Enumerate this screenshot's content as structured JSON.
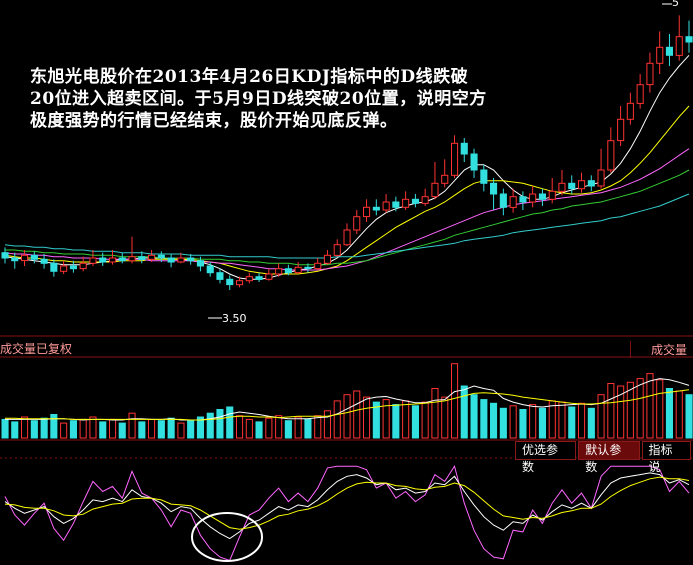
{
  "annotation": "东旭光电股价在2013年4月26日KDJ指标中的D线跌破20位进入超卖区间。于5月9日D线突破20位置，说明空方极度强势的行情已经结束，股价开始见底反弹。",
  "volume_panel": {
    "left_label": "成交量已复权",
    "right_label": "成交量"
  },
  "indicator_buttons": [
    "优选参数",
    "默认参数",
    "指标说"
  ],
  "price_labels": {
    "low": "3.50",
    "high": "5"
  },
  "colors": {
    "up": "#ff3333",
    "down": "#33e0e0",
    "ma5": "#ffffff",
    "ma10": "#ffff00",
    "ma20": "#ff66ff",
    "ma30": "#33cc33",
    "ma60": "#33cccc",
    "kdj_k": "#ffffff",
    "kdj_d": "#ffff00",
    "kdj_j": "#ff66ff",
    "separator": "#8a1010",
    "circle": "#ffffff"
  },
  "chart_data": {
    "type": "candlestick",
    "price_axis": [
      3.2,
      5.6
    ],
    "candles": [
      [
        3.78,
        3.74,
        3.82,
        3.7
      ],
      [
        3.74,
        3.72,
        3.78,
        3.66
      ],
      [
        3.72,
        3.76,
        3.8,
        3.68
      ],
      [
        3.76,
        3.73,
        3.79,
        3.7
      ],
      [
        3.73,
        3.7,
        3.77,
        3.66
      ],
      [
        3.7,
        3.64,
        3.73,
        3.6
      ],
      [
        3.64,
        3.68,
        3.72,
        3.62
      ],
      [
        3.68,
        3.66,
        3.72,
        3.63
      ],
      [
        3.66,
        3.7,
        3.75,
        3.64
      ],
      [
        3.7,
        3.74,
        3.8,
        3.68
      ],
      [
        3.74,
        3.71,
        3.78,
        3.68
      ],
      [
        3.71,
        3.74,
        3.8,
        3.69
      ],
      [
        3.74,
        3.72,
        3.78,
        3.7
      ],
      [
        3.72,
        3.75,
        3.9,
        3.7
      ],
      [
        3.75,
        3.73,
        3.79,
        3.7
      ],
      [
        3.73,
        3.76,
        3.8,
        3.71
      ],
      [
        3.76,
        3.74,
        3.79,
        3.71
      ],
      [
        3.74,
        3.71,
        3.77,
        3.67
      ],
      [
        3.71,
        3.74,
        3.78,
        3.7
      ],
      [
        3.74,
        3.72,
        3.77,
        3.69
      ],
      [
        3.72,
        3.68,
        3.75,
        3.64
      ],
      [
        3.68,
        3.63,
        3.71,
        3.6
      ],
      [
        3.63,
        3.58,
        3.66,
        3.55
      ],
      [
        3.58,
        3.54,
        3.61,
        3.5
      ],
      [
        3.54,
        3.57,
        3.6,
        3.52
      ],
      [
        3.57,
        3.6,
        3.63,
        3.55
      ],
      [
        3.6,
        3.58,
        3.63,
        3.56
      ],
      [
        3.58,
        3.62,
        3.66,
        3.57
      ],
      [
        3.62,
        3.66,
        3.7,
        3.6
      ],
      [
        3.66,
        3.63,
        3.69,
        3.61
      ],
      [
        3.63,
        3.67,
        3.71,
        3.62
      ],
      [
        3.67,
        3.66,
        3.7,
        3.63
      ],
      [
        3.66,
        3.7,
        3.74,
        3.65
      ],
      [
        3.7,
        3.76,
        3.8,
        3.69
      ],
      [
        3.76,
        3.84,
        3.88,
        3.75
      ],
      [
        3.84,
        3.95,
        4.0,
        3.83
      ],
      [
        3.95,
        4.05,
        4.1,
        3.92
      ],
      [
        4.05,
        4.12,
        4.18,
        4.01
      ],
      [
        4.12,
        4.1,
        4.18,
        4.06
      ],
      [
        4.1,
        4.16,
        4.22,
        4.08
      ],
      [
        4.16,
        4.12,
        4.2,
        4.09
      ],
      [
        4.12,
        4.18,
        4.24,
        4.1
      ],
      [
        4.18,
        4.15,
        4.22,
        4.12
      ],
      [
        4.15,
        4.2,
        4.26,
        4.13
      ],
      [
        4.2,
        4.3,
        4.46,
        4.18
      ],
      [
        4.3,
        4.36,
        4.48,
        4.27
      ],
      [
        4.36,
        4.6,
        4.66,
        4.34
      ],
      [
        4.6,
        4.52,
        4.64,
        4.46
      ],
      [
        4.52,
        4.4,
        4.56,
        4.34
      ],
      [
        4.4,
        4.3,
        4.44,
        4.24
      ],
      [
        4.3,
        4.22,
        4.34,
        4.1
      ],
      [
        4.22,
        4.12,
        4.26,
        4.06
      ],
      [
        4.12,
        4.2,
        4.26,
        4.08
      ],
      [
        4.2,
        4.16,
        4.24,
        4.1
      ],
      [
        4.16,
        4.22,
        4.28,
        4.12
      ],
      [
        4.22,
        4.18,
        4.26,
        4.13
      ],
      [
        4.18,
        4.24,
        4.34,
        4.15
      ],
      [
        4.24,
        4.3,
        4.4,
        4.21
      ],
      [
        4.3,
        4.26,
        4.36,
        4.22
      ],
      [
        4.26,
        4.32,
        4.38,
        4.23
      ],
      [
        4.32,
        4.28,
        4.36,
        4.24
      ],
      [
        4.28,
        4.4,
        4.56,
        4.26
      ],
      [
        4.4,
        4.62,
        4.72,
        4.38
      ],
      [
        4.62,
        4.78,
        4.88,
        4.58
      ],
      [
        4.78,
        4.9,
        4.98,
        4.74
      ],
      [
        4.9,
        5.04,
        5.12,
        4.86
      ],
      [
        5.04,
        5.2,
        5.28,
        4.98
      ],
      [
        5.2,
        5.32,
        5.44,
        5.12
      ],
      [
        5.32,
        5.26,
        5.42,
        5.18
      ],
      [
        5.26,
        5.4,
        5.56,
        5.22
      ],
      [
        5.4,
        5.36,
        5.52,
        5.28
      ]
    ],
    "ma_lines": {
      "MA5": [
        3.75,
        3.74,
        3.73,
        3.72,
        3.71,
        3.7,
        3.69,
        3.69,
        3.69,
        3.7,
        3.71,
        3.72,
        3.73,
        3.73,
        3.74,
        3.74,
        3.74,
        3.73,
        3.73,
        3.72,
        3.71,
        3.69,
        3.66,
        3.62,
        3.59,
        3.58,
        3.58,
        3.59,
        3.61,
        3.63,
        3.65,
        3.66,
        3.68,
        3.7,
        3.74,
        3.8,
        3.88,
        3.96,
        4.03,
        4.08,
        4.11,
        4.13,
        4.15,
        4.16,
        4.19,
        4.24,
        4.32,
        4.4,
        4.44,
        4.44,
        4.4,
        4.32,
        4.25,
        4.2,
        4.18,
        4.18,
        4.2,
        4.23,
        4.25,
        4.27,
        4.29,
        4.31,
        4.37,
        4.45,
        4.56,
        4.69,
        4.84,
        4.98,
        5.09,
        5.18,
        5.26
      ],
      "MA10": [
        3.76,
        3.75,
        3.74,
        3.74,
        3.73,
        3.72,
        3.72,
        3.71,
        3.71,
        3.71,
        3.71,
        3.71,
        3.72,
        3.72,
        3.72,
        3.73,
        3.73,
        3.73,
        3.73,
        3.73,
        3.72,
        3.71,
        3.7,
        3.68,
        3.66,
        3.64,
        3.63,
        3.62,
        3.62,
        3.62,
        3.62,
        3.63,
        3.64,
        3.66,
        3.68,
        3.72,
        3.77,
        3.82,
        3.87,
        3.92,
        3.97,
        4.01,
        4.05,
        4.09,
        4.12,
        4.16,
        4.21,
        4.26,
        4.3,
        4.32,
        4.32,
        4.32,
        4.31,
        4.3,
        4.28,
        4.26,
        4.24,
        4.23,
        4.22,
        4.22,
        4.23,
        4.25,
        4.28,
        4.32,
        4.38,
        4.45,
        4.53,
        4.62,
        4.71,
        4.8,
        4.88
      ],
      "MA20": [
        3.78,
        3.77,
        3.77,
        3.76,
        3.76,
        3.75,
        3.75,
        3.74,
        3.74,
        3.74,
        3.73,
        3.73,
        3.73,
        3.73,
        3.73,
        3.72,
        3.72,
        3.72,
        3.72,
        3.72,
        3.71,
        3.71,
        3.7,
        3.7,
        3.69,
        3.68,
        3.67,
        3.66,
        3.66,
        3.65,
        3.65,
        3.65,
        3.65,
        3.66,
        3.67,
        3.68,
        3.7,
        3.72,
        3.75,
        3.78,
        3.81,
        3.84,
        3.87,
        3.9,
        3.93,
        3.96,
        3.99,
        4.02,
        4.05,
        4.08,
        4.1,
        4.12,
        4.14,
        4.15,
        4.16,
        4.17,
        4.18,
        4.19,
        4.2,
        4.21,
        4.22,
        4.23,
        4.25,
        4.27,
        4.3,
        4.33,
        4.37,
        4.41,
        4.46,
        4.51,
        4.56
      ],
      "MA30": [
        3.8,
        3.8,
        3.79,
        3.79,
        3.78,
        3.78,
        3.77,
        3.77,
        3.77,
        3.76,
        3.76,
        3.76,
        3.75,
        3.75,
        3.75,
        3.75,
        3.74,
        3.74,
        3.74,
        3.74,
        3.73,
        3.73,
        3.73,
        3.72,
        3.72,
        3.71,
        3.71,
        3.7,
        3.7,
        3.7,
        3.69,
        3.69,
        3.69,
        3.69,
        3.7,
        3.7,
        3.71,
        3.72,
        3.74,
        3.76,
        3.78,
        3.8,
        3.82,
        3.84,
        3.86,
        3.88,
        3.91,
        3.93,
        3.95,
        3.97,
        3.99,
        4.01,
        4.03,
        4.05,
        4.07,
        4.08,
        4.1,
        4.11,
        4.13,
        4.14,
        4.15,
        4.16,
        4.18,
        4.2,
        4.22,
        4.24,
        4.27,
        4.3,
        4.33,
        4.36,
        4.4
      ],
      "MA60": [
        3.84,
        3.83,
        3.83,
        3.82,
        3.82,
        3.81,
        3.81,
        3.8,
        3.8,
        3.79,
        3.79,
        3.79,
        3.78,
        3.78,
        3.78,
        3.77,
        3.77,
        3.77,
        3.77,
        3.76,
        3.76,
        3.76,
        3.76,
        3.75,
        3.75,
        3.75,
        3.75,
        3.75,
        3.74,
        3.74,
        3.74,
        3.74,
        3.74,
        3.74,
        3.75,
        3.75,
        3.75,
        3.76,
        3.77,
        3.78,
        3.79,
        3.8,
        3.81,
        3.82,
        3.83,
        3.84,
        3.85,
        3.87,
        3.88,
        3.89,
        3.9,
        3.91,
        3.93,
        3.94,
        3.95,
        3.96,
        3.97,
        3.98,
        3.99,
        4.0,
        4.01,
        4.02,
        4.04,
        4.05,
        4.07,
        4.09,
        4.11,
        4.13,
        4.16,
        4.19,
        4.22
      ]
    },
    "volume": [
      30,
      26,
      34,
      28,
      32,
      38,
      24,
      28,
      30,
      34,
      26,
      30,
      24,
      40,
      26,
      30,
      28,
      32,
      24,
      28,
      34,
      40,
      46,
      50,
      36,
      30,
      26,
      32,
      36,
      28,
      34,
      30,
      36,
      44,
      60,
      70,
      76,
      66,
      58,
      62,
      54,
      60,
      52,
      58,
      80,
      66,
      120,
      84,
      70,
      62,
      56,
      48,
      52,
      46,
      54,
      48,
      60,
      58,
      50,
      56,
      48,
      70,
      88,
      84,
      90,
      96,
      104,
      94,
      80,
      76,
      70
    ],
    "volume_ma": {
      "MA5": [
        30,
        30,
        30,
        30,
        30,
        31,
        31,
        30,
        29,
        30,
        30,
        29,
        29,
        31,
        31,
        30,
        30,
        31,
        29,
        29,
        29,
        31,
        34,
        39,
        42,
        40,
        38,
        35,
        33,
        31,
        31,
        31,
        33,
        34,
        39,
        47,
        55,
        63,
        66,
        67,
        63,
        60,
        57,
        57,
        61,
        62,
        75,
        78,
        84,
        80,
        77,
        64,
        58,
        54,
        51,
        50,
        52,
        53,
        54,
        55,
        54,
        56,
        63,
        70,
        78,
        86,
        92,
        96,
        94,
        90,
        85
      ],
      "MA10": [
        32,
        32,
        31,
        31,
        31,
        31,
        31,
        30,
        30,
        30,
        30,
        30,
        30,
        30,
        30,
        30,
        30,
        30,
        30,
        29,
        29,
        30,
        31,
        34,
        35,
        35,
        34,
        34,
        33,
        34,
        35,
        35,
        35,
        35,
        38,
        41,
        45,
        48,
        50,
        52,
        53,
        54,
        55,
        56,
        58,
        60,
        64,
        68,
        72,
        73,
        72,
        71,
        69,
        66,
        64,
        62,
        60,
        58,
        56,
        55,
        55,
        56,
        57,
        59,
        61,
        64,
        68,
        72,
        74,
        76,
        78
      ]
    },
    "kdj": {
      "K": [
        58,
        50,
        44,
        48,
        52,
        40,
        32,
        38,
        48,
        60,
        58,
        62,
        58,
        72,
        64,
        62,
        56,
        46,
        52,
        50,
        38,
        28,
        20,
        14,
        22,
        32,
        36,
        44,
        52,
        48,
        54,
        52,
        60,
        72,
        82,
        88,
        90,
        86,
        78,
        80,
        72,
        74,
        68,
        70,
        80,
        78,
        88,
        70,
        54,
        40,
        30,
        24,
        34,
        32,
        42,
        36,
        46,
        54,
        50,
        56,
        50,
        66,
        80,
        86,
        88,
        90,
        92,
        90,
        80,
        84,
        78
      ],
      "D": [
        55,
        54,
        51,
        50,
        50,
        47,
        42,
        41,
        43,
        49,
        52,
        55,
        56,
        61,
        62,
        62,
        60,
        55,
        54,
        53,
        48,
        41,
        34,
        27,
        25,
        27,
        30,
        35,
        41,
        43,
        47,
        49,
        53,
        59,
        67,
        74,
        79,
        81,
        80,
        80,
        77,
        76,
        73,
        72,
        75,
        76,
        80,
        77,
        69,
        59,
        49,
        41,
        39,
        37,
        39,
        38,
        41,
        45,
        47,
        50,
        50,
        55,
        64,
        71,
        77,
        81,
        85,
        87,
        85,
        85,
        83
      ],
      "J": [
        64,
        42,
        30,
        44,
        56,
        26,
        12,
        32,
        58,
        82,
        70,
        76,
        62,
        94,
        68,
        62,
        48,
        28,
        48,
        44,
        18,
        2,
        -8,
        -12,
        16,
        42,
        48,
        62,
        74,
        58,
        68,
        58,
        74,
        98,
        100,
        100,
        100,
        96,
        74,
        80,
        62,
        70,
        58,
        66,
        90,
        82,
        100,
        56,
        24,
        2,
        -8,
        -10,
        24,
        22,
        48,
        32,
        56,
        72,
        56,
        68,
        50,
        88,
        100,
        100,
        100,
        100,
        100,
        96,
        70,
        82,
        68
      ]
    }
  }
}
